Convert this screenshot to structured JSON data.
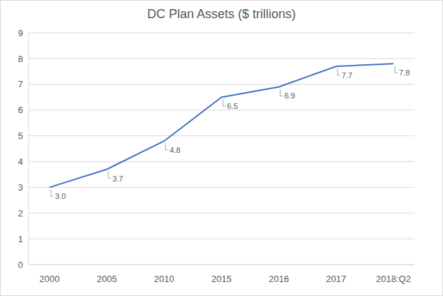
{
  "chart_data": {
    "type": "line",
    "title": "DC Plan Assets ($ trillions)",
    "categories": [
      "2000",
      "2005",
      "2010",
      "2015",
      "2016",
      "2017",
      "2018:Q2"
    ],
    "values": [
      3.0,
      3.7,
      4.8,
      6.5,
      6.9,
      7.7,
      7.8
    ],
    "value_labels": [
      "3.0",
      "3.7",
      "4.8",
      "6.5",
      "6.9",
      "7.7",
      "7.8"
    ],
    "color": "#4472c4",
    "ylim": [
      0,
      9
    ],
    "yticks": [
      0,
      1,
      2,
      3,
      4,
      5,
      6,
      7,
      8,
      9
    ],
    "grid": true,
    "data_labels": true
  }
}
